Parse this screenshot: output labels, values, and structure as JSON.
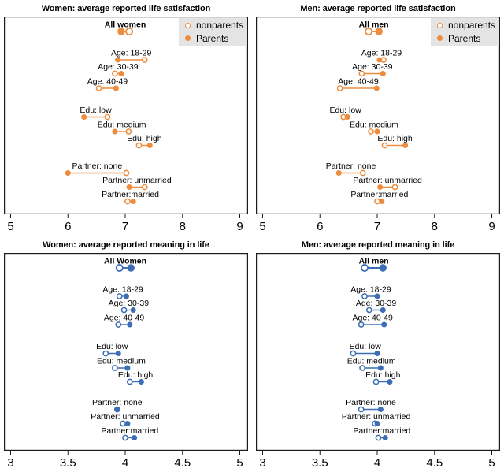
{
  "legend": {
    "nonparents_label": "nonparents",
    "parents_label": "Parents",
    "box_color": "#e4e4e4"
  },
  "colors": {
    "life_satisfaction": "#ee8c3d",
    "meaning_in_life": "#3c6db5",
    "border": "#1a1a1a"
  },
  "chart_data": [
    {
      "id": "women-life-satisfaction",
      "type": "scatter",
      "subtype": "dumbbell",
      "title": "Women: average reported life satisfaction",
      "color": "#ee8c3d",
      "legend": [
        "nonparents",
        "Parents"
      ],
      "legend_position": "top-right",
      "axis": {
        "min": 5,
        "max": 9,
        "ticks": [
          5,
          6,
          7,
          8,
          9
        ],
        "tick_labels": [
          "5",
          "6",
          "7",
          "8",
          "9"
        ]
      },
      "rows": [
        {
          "label": "All women",
          "bold": true,
          "nonparents": 7.07,
          "parents": 6.93
        },
        {
          "label": "Age: 18-29",
          "bold": false,
          "nonparents": 7.34,
          "parents": 6.87
        },
        {
          "label": "Age: 30-39",
          "bold": false,
          "nonparents": 6.82,
          "parents": 6.93
        },
        {
          "label": "Age: 40-49",
          "bold": false,
          "nonparents": 6.54,
          "parents": 6.84
        },
        {
          "label": "Edu: low",
          "bold": false,
          "nonparents": 6.69,
          "parents": 6.28
        },
        {
          "label": "Edu: medium",
          "bold": false,
          "nonparents": 7.06,
          "parents": 6.82
        },
        {
          "label": "Edu: high",
          "bold": false,
          "nonparents": 7.24,
          "parents": 7.43
        },
        {
          "label": "Partner: none",
          "bold": false,
          "nonparents": 7.02,
          "parents": 6.0
        },
        {
          "label": "Partner: unmarried",
          "bold": false,
          "nonparents": 7.34,
          "parents": 7.07
        },
        {
          "label": "Partner:married",
          "bold": false,
          "nonparents": 7.04,
          "parents": 7.14
        }
      ]
    },
    {
      "id": "men-life-satisfaction",
      "type": "scatter",
      "subtype": "dumbbell",
      "title": "Men: average reported life satisfaction",
      "color": "#ee8c3d",
      "legend": [
        "nonparents",
        "Parents"
      ],
      "legend_position": "top-right",
      "axis": {
        "min": 5,
        "max": 9,
        "ticks": [
          5,
          6,
          7,
          8,
          9
        ],
        "tick_labels": [
          "5",
          "6",
          "7",
          "8",
          "9"
        ]
      },
      "rows": [
        {
          "label": "All men",
          "bold": true,
          "nonparents": 6.85,
          "parents": 7.03
        },
        {
          "label": "Age: 18-29",
          "bold": false,
          "nonparents": 7.11,
          "parents": 7.04
        },
        {
          "label": "Age: 30-39",
          "bold": false,
          "nonparents": 6.73,
          "parents": 7.1
        },
        {
          "label": "Age: 40-49",
          "bold": false,
          "nonparents": 6.35,
          "parents": 6.99
        },
        {
          "label": "Edu: low",
          "bold": false,
          "nonparents": 6.41,
          "parents": 6.48
        },
        {
          "label": "Edu: medium",
          "bold": false,
          "nonparents": 6.89,
          "parents": 7.0
        },
        {
          "label": "Edu: high",
          "bold": false,
          "nonparents": 7.13,
          "parents": 7.49
        },
        {
          "label": "Partner: none",
          "bold": false,
          "nonparents": 6.75,
          "parents": 6.33
        },
        {
          "label": "Partner: unmarried",
          "bold": false,
          "nonparents": 7.31,
          "parents": 7.05
        },
        {
          "label": "Partner:married",
          "bold": false,
          "nonparents": 7.0,
          "parents": 7.08
        }
      ]
    },
    {
      "id": "women-meaning-in-life",
      "type": "scatter",
      "subtype": "dumbbell",
      "title": "Women: average reported meaning in life",
      "color": "#3c6db5",
      "legend": null,
      "axis": {
        "min": 3,
        "max": 5,
        "ticks": [
          3,
          3.5,
          4,
          4.5,
          5
        ],
        "tick_labels": [
          "3",
          "3.5",
          "4",
          "4.5",
          "5"
        ]
      },
      "rows": [
        {
          "label": "All Women",
          "bold": true,
          "nonparents": 3.95,
          "parents": 4.05
        },
        {
          "label": "Age: 18-29",
          "bold": false,
          "nonparents": 3.95,
          "parents": 4.01
        },
        {
          "label": "Age: 30-39",
          "bold": false,
          "nonparents": 3.99,
          "parents": 4.07
        },
        {
          "label": "Age: 40-49",
          "bold": false,
          "nonparents": 3.94,
          "parents": 4.04
        },
        {
          "label": "Edu: low",
          "bold": false,
          "nonparents": 3.83,
          "parents": 3.94
        },
        {
          "label": "Edu: medium",
          "bold": false,
          "nonparents": 3.91,
          "parents": 4.02
        },
        {
          "label": "Edu: high",
          "bold": false,
          "nonparents": 4.04,
          "parents": 4.14
        },
        {
          "label": "Partner: none",
          "bold": false,
          "nonparents": 3.93,
          "parents": 3.93
        },
        {
          "label": "Partner: unmarried",
          "bold": false,
          "nonparents": 3.98,
          "parents": 4.02
        },
        {
          "label": "Partner:married",
          "bold": false,
          "nonparents": 4.0,
          "parents": 4.08
        }
      ]
    },
    {
      "id": "men-meaning-in-life",
      "type": "scatter",
      "subtype": "dumbbell",
      "title": "Men: average reported meaning in life",
      "color": "#3c6db5",
      "legend": null,
      "axis": {
        "min": 3,
        "max": 5,
        "ticks": [
          3,
          3.5,
          4,
          4.5,
          5
        ],
        "tick_labels": [
          "3",
          "3.5",
          "4",
          "4.5",
          "5"
        ]
      },
      "rows": [
        {
          "label": "All men",
          "bold": true,
          "nonparents": 3.89,
          "parents": 4.05
        },
        {
          "label": "Age: 18-29",
          "bold": false,
          "nonparents": 3.89,
          "parents": 4.0
        },
        {
          "label": "Age: 30-39",
          "bold": false,
          "nonparents": 3.93,
          "parents": 4.05
        },
        {
          "label": "Age: 40-49",
          "bold": false,
          "nonparents": 3.86,
          "parents": 4.06
        },
        {
          "label": "Edu: low",
          "bold": false,
          "nonparents": 3.79,
          "parents": 4.0
        },
        {
          "label": "Edu: medium",
          "bold": false,
          "nonparents": 3.87,
          "parents": 4.03
        },
        {
          "label": "Edu: high",
          "bold": false,
          "nonparents": 3.99,
          "parents": 4.11
        },
        {
          "label": "Partner: none",
          "bold": false,
          "nonparents": 3.86,
          "parents": 4.03
        },
        {
          "label": "Partner: unmarried",
          "bold": false,
          "nonparents": 3.98,
          "parents": 4.0
        },
        {
          "label": "Partner:married",
          "bold": false,
          "nonparents": 4.01,
          "parents": 4.07
        }
      ]
    }
  ]
}
